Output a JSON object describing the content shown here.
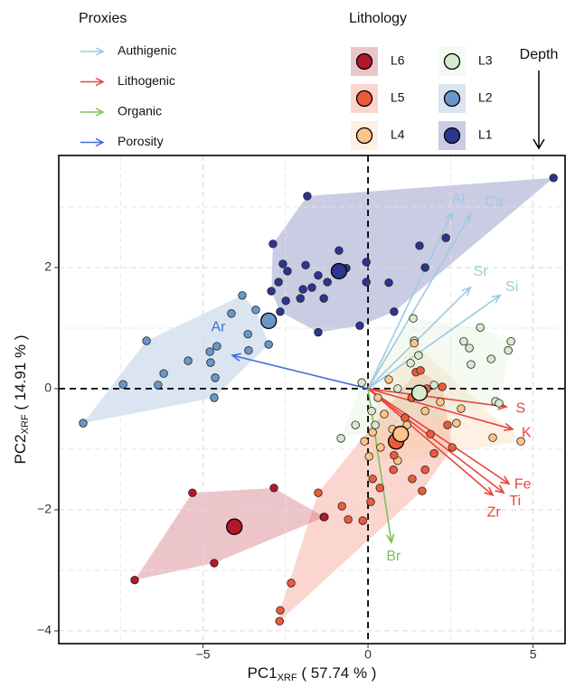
{
  "chart_data": {
    "type": "biplot",
    "x_label": "PC1",
    "x_label_subscript": "XRF",
    "x_label_suffix": " ( 57.74 % )",
    "y_label": "PC2",
    "y_label_subscript": "XRF",
    "y_label_suffix": " ( 14.91 % )",
    "xlim": [
      -9.37,
      5.97
    ],
    "ylim": [
      -4.21,
      3.85
    ],
    "xticks": [
      {
        "value": -5,
        "label": "−5"
      },
      0,
      5
    ],
    "yticks": [
      {
        "value": -4,
        "label": "−4"
      },
      {
        "value": -2,
        "label": "−2"
      },
      0,
      2
    ],
    "x_minor_grid": [
      -7.5,
      -2.5,
      2.5
    ],
    "y_minor_grid": [
      3,
      1,
      -1,
      -3
    ],
    "grid": true,
    "series_legend_title": "Lithology",
    "proxy_legend_title": "Proxies",
    "depth_label": "Depth",
    "series": [
      {
        "name": "L6",
        "color": "#b2182b",
        "centroid": {
          "x": -4.05,
          "y": -2.28
        },
        "x": [
          -7.07,
          -5.32,
          -4.66,
          -2.85,
          -1.32
        ],
        "y": [
          -3.16,
          -1.72,
          -2.88,
          -1.64,
          -2.12
        ]
      },
      {
        "name": "L5",
        "color": "#ec5a3c",
        "centroid": {
          "x": 0.85,
          "y": -0.87
        },
        "x": [
          -2.68,
          -2.66,
          -2.33,
          -1.34,
          -0.79,
          -0.6,
          -0.16,
          -1.51,
          0.08,
          0.36,
          0.77,
          1.64,
          1.73,
          2.0,
          2.55,
          2.41,
          1.45,
          1.78,
          1.32,
          1.12,
          0.79,
          0.14,
          1.34,
          1.89,
          2.25,
          1.59
        ],
        "y": [
          -3.84,
          -3.66,
          -3.21,
          -2.12,
          -1.94,
          -2.16,
          -2.18,
          -1.72,
          -1.87,
          -1.64,
          -1.34,
          -1.69,
          -1.34,
          -1.07,
          -0.97,
          -0.6,
          0.27,
          0.0,
          -0.15,
          -0.48,
          -1.1,
          -1.49,
          -1.49,
          -0.75,
          0.03,
          0.3
        ]
      },
      {
        "name": "L4",
        "color": "#fdc48a",
        "centroid": {
          "x": 0.99,
          "y": -0.75
        },
        "x": [
          4.63,
          3.78,
          2.68,
          2.82,
          1.67,
          0.63,
          0.3,
          0.14,
          0.03,
          0.38,
          0.74,
          1.18,
          1.73,
          2.19,
          0.9,
          0.49,
          -0.11,
          1.4
        ],
        "y": [
          -0.87,
          -0.81,
          -0.57,
          -0.33,
          -0.07,
          0.15,
          -0.15,
          -0.72,
          -1.12,
          -0.97,
          -0.67,
          -0.6,
          -0.37,
          -0.22,
          -1.19,
          -0.42,
          -0.87,
          0.75
        ]
      },
      {
        "name": "L3",
        "color": "#d4ebcd",
        "centroid": {
          "x": 1.56,
          "y": -0.07
        },
        "x": [
          4.33,
          4.25,
          3.4,
          3.07,
          2.9,
          3.12,
          3.73,
          3.86,
          3.97,
          1.37,
          1.4,
          1.53,
          1.29,
          -0.19,
          -0.82,
          -0.38,
          0.11,
          0.22,
          2.0,
          0.9
        ],
        "y": [
          0.78,
          0.63,
          1.01,
          0.67,
          0.78,
          0.4,
          0.49,
          -0.21,
          -0.24,
          1.16,
          0.79,
          0.55,
          0.42,
          0.1,
          -0.82,
          -0.6,
          -0.37,
          -0.6,
          0.06,
          0.0
        ]
      },
      {
        "name": "L2",
        "color": "#6a97c9",
        "centroid": {
          "x": -3.01,
          "y": 1.12
        },
        "x": [
          -8.63,
          -6.71,
          -6.19,
          -7.42,
          -6.36,
          -5.45,
          -4.77,
          -4.79,
          -4.58,
          -4.63,
          -4.66,
          -4.14,
          -3.81,
          -3.64,
          -3.4,
          -3.01,
          -3.62
        ],
        "y": [
          -0.57,
          0.79,
          0.25,
          0.07,
          0.06,
          0.46,
          0.43,
          0.61,
          0.7,
          0.18,
          -0.15,
          1.24,
          1.54,
          0.9,
          1.3,
          0.73,
          0.63
        ]
      },
      {
        "name": "L1",
        "color": "#2c3590",
        "centroid": {
          "x": -0.88,
          "y": 1.94
        },
        "x": [
          5.62,
          -1.84,
          -2.88,
          -0.88,
          1.56,
          2.36,
          -2.58,
          -2.44,
          -1.89,
          -1.51,
          -1.23,
          -1.97,
          -2.71,
          -2.93,
          -2.49,
          -1.34,
          -1.7,
          -0.05,
          0.63,
          -0.05,
          -0.25,
          -1.51,
          0.79,
          -2.66,
          -2.05,
          -0.66,
          1.73
        ],
        "y": [
          3.48,
          3.18,
          2.39,
          2.28,
          2.36,
          2.49,
          2.06,
          1.94,
          2.04,
          1.87,
          1.76,
          1.64,
          1.76,
          1.61,
          1.45,
          1.49,
          1.67,
          1.76,
          1.75,
          2.09,
          1.04,
          0.93,
          1.27,
          1.27,
          1.49,
          1.99,
          2.0
        ]
      }
    ],
    "proxies": [
      {
        "name": "Authigenic",
        "color": "#9ecae1"
      },
      {
        "name": "Lithogenic",
        "color": "#e8463d"
      },
      {
        "name": "Organic",
        "color": "#7cc15a"
      },
      {
        "name": "Porosity",
        "color": "#3d6fd9"
      }
    ],
    "loadings": [
      {
        "name": "Al",
        "proxy": 0,
        "x": 2.55,
        "y": 2.91
      },
      {
        "name": "Ca",
        "proxy": 0,
        "x": 3.1,
        "y": 2.87
      },
      {
        "name": "Sr",
        "proxy": 0,
        "x": 3.1,
        "y": 1.67
      },
      {
        "name": "Si",
        "proxy": 0,
        "x": 4.0,
        "y": 1.54
      },
      {
        "name": "Ar",
        "proxy": 3,
        "x": -4.11,
        "y": 0.55
      },
      {
        "name": "S",
        "proxy": 1,
        "x": 4.19,
        "y": -0.3
      },
      {
        "name": "K",
        "proxy": 1,
        "x": 4.38,
        "y": -0.67
      },
      {
        "name": "Fe",
        "proxy": 1,
        "x": 4.27,
        "y": -1.57
      },
      {
        "name": "Ti",
        "proxy": 1,
        "x": 4.11,
        "y": -1.72
      },
      {
        "name": "Zr",
        "proxy": 1,
        "x": 3.78,
        "y": -1.76
      },
      {
        "name": "Br",
        "proxy": 2,
        "x": 0.71,
        "y": -2.54
      }
    ]
  }
}
